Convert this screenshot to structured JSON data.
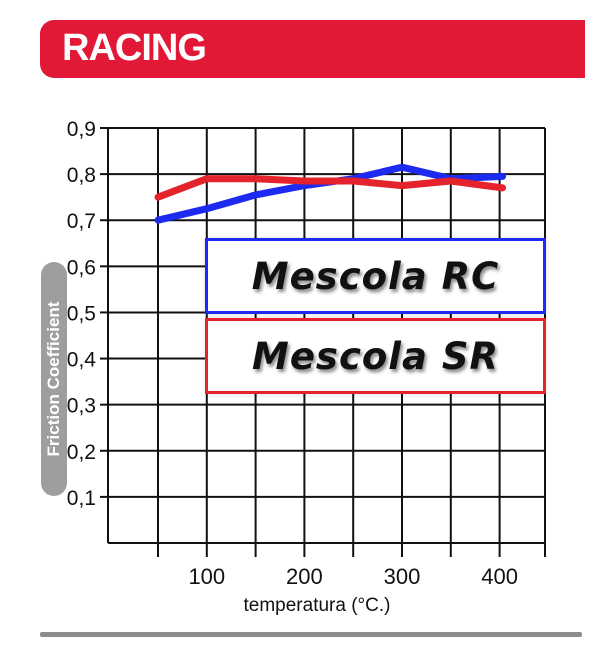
{
  "header": {
    "title": "RACING"
  },
  "colors": {
    "banner": "#e21837",
    "grid": "#111111",
    "rc": "#1d2bf0",
    "sr": "#e5232c",
    "ylabel_box": "#9e9e9e"
  },
  "legend": {
    "rc_label": "Mescola RC",
    "sr_label": "Mescola SR"
  },
  "chart_data": {
    "type": "line",
    "title": "",
    "xlabel": "temperatura (°C.)",
    "ylabel": "Friction Coefficient",
    "x_ticks": [
      100,
      200,
      300,
      400
    ],
    "y_ticks": [
      "0,1",
      "0,2",
      "0,3",
      "0,4",
      "0,5",
      "0,6",
      "0,7",
      "0,8",
      "0,9"
    ],
    "xlim": [
      0,
      400
    ],
    "ylim": [
      0,
      0.9
    ],
    "grid": true,
    "series": [
      {
        "name": "Mescola RC",
        "color": "#1d2bf0",
        "x": [
          50,
          100,
          150,
          200,
          250,
          300,
          350,
          400
        ],
        "y": [
          0.7,
          0.725,
          0.755,
          0.775,
          0.79,
          0.815,
          0.79,
          0.795
        ]
      },
      {
        "name": "Mescola SR",
        "color": "#e5232c",
        "x": [
          50,
          100,
          150,
          200,
          250,
          300,
          350,
          400
        ],
        "y": [
          0.75,
          0.79,
          0.79,
          0.785,
          0.785,
          0.775,
          0.785,
          0.77
        ]
      }
    ]
  }
}
